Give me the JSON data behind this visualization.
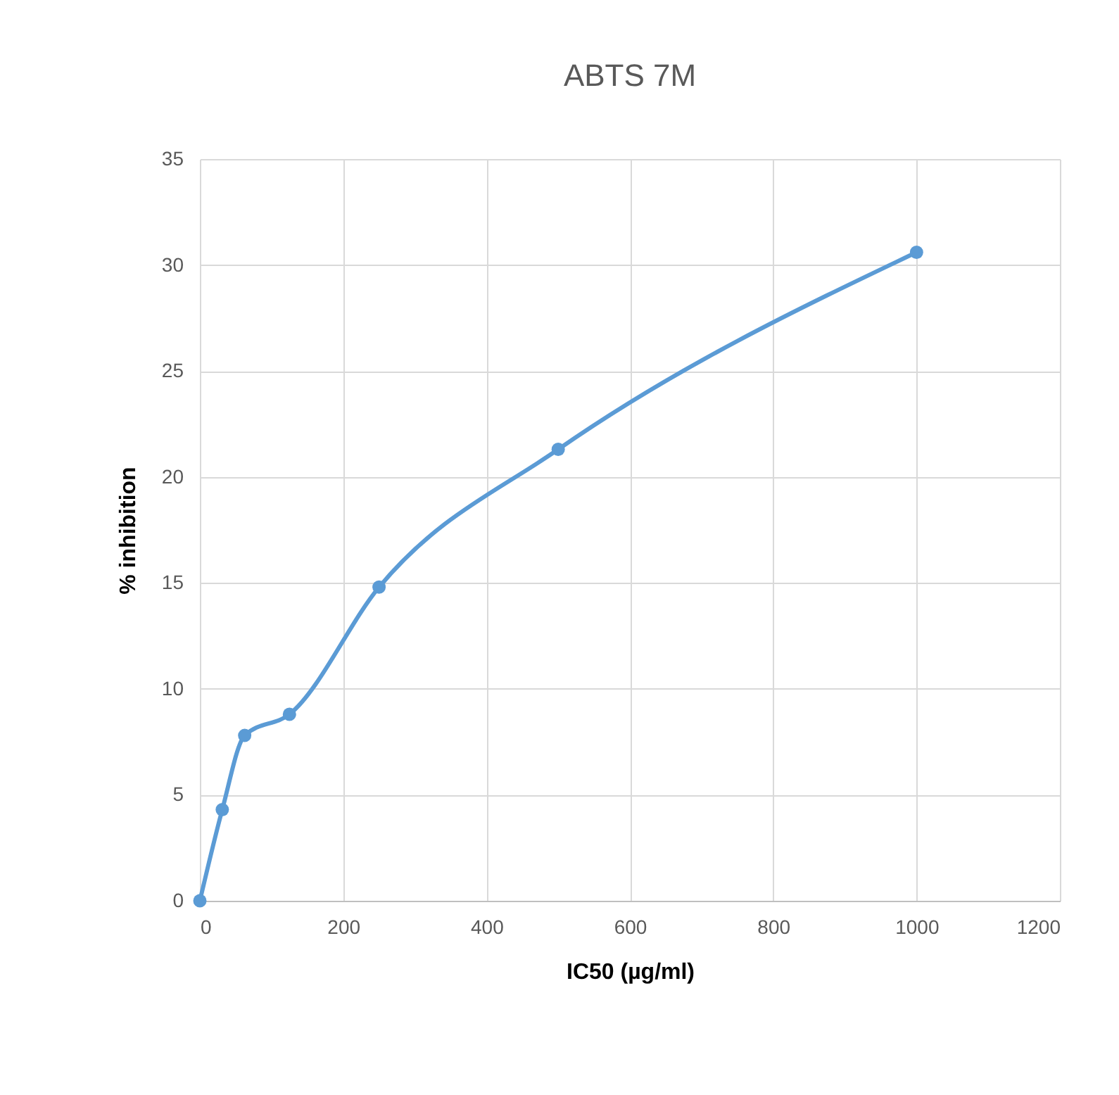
{
  "chart_data": {
    "type": "line",
    "title": "ABTS 7M",
    "xlabel": "IC50 (µg/ml)",
    "ylabel": "% inhibition",
    "x": [
      0,
      31.25,
      62.5,
      125,
      250,
      500,
      1000
    ],
    "series": [
      {
        "color": "#5b9bd5",
        "values": [
          0,
          4.3,
          7.8,
          8.8,
          14.8,
          21.3,
          30.6
        ]
      }
    ],
    "xlim": [
      0,
      1200
    ],
    "xticks": [
      0,
      200,
      400,
      600,
      800,
      1000,
      1200
    ],
    "ylim": [
      0,
      35
    ],
    "yticks": [
      0,
      5,
      10,
      15,
      20,
      25,
      30,
      35
    ],
    "grid": true,
    "marker": "circle",
    "legend": false
  }
}
